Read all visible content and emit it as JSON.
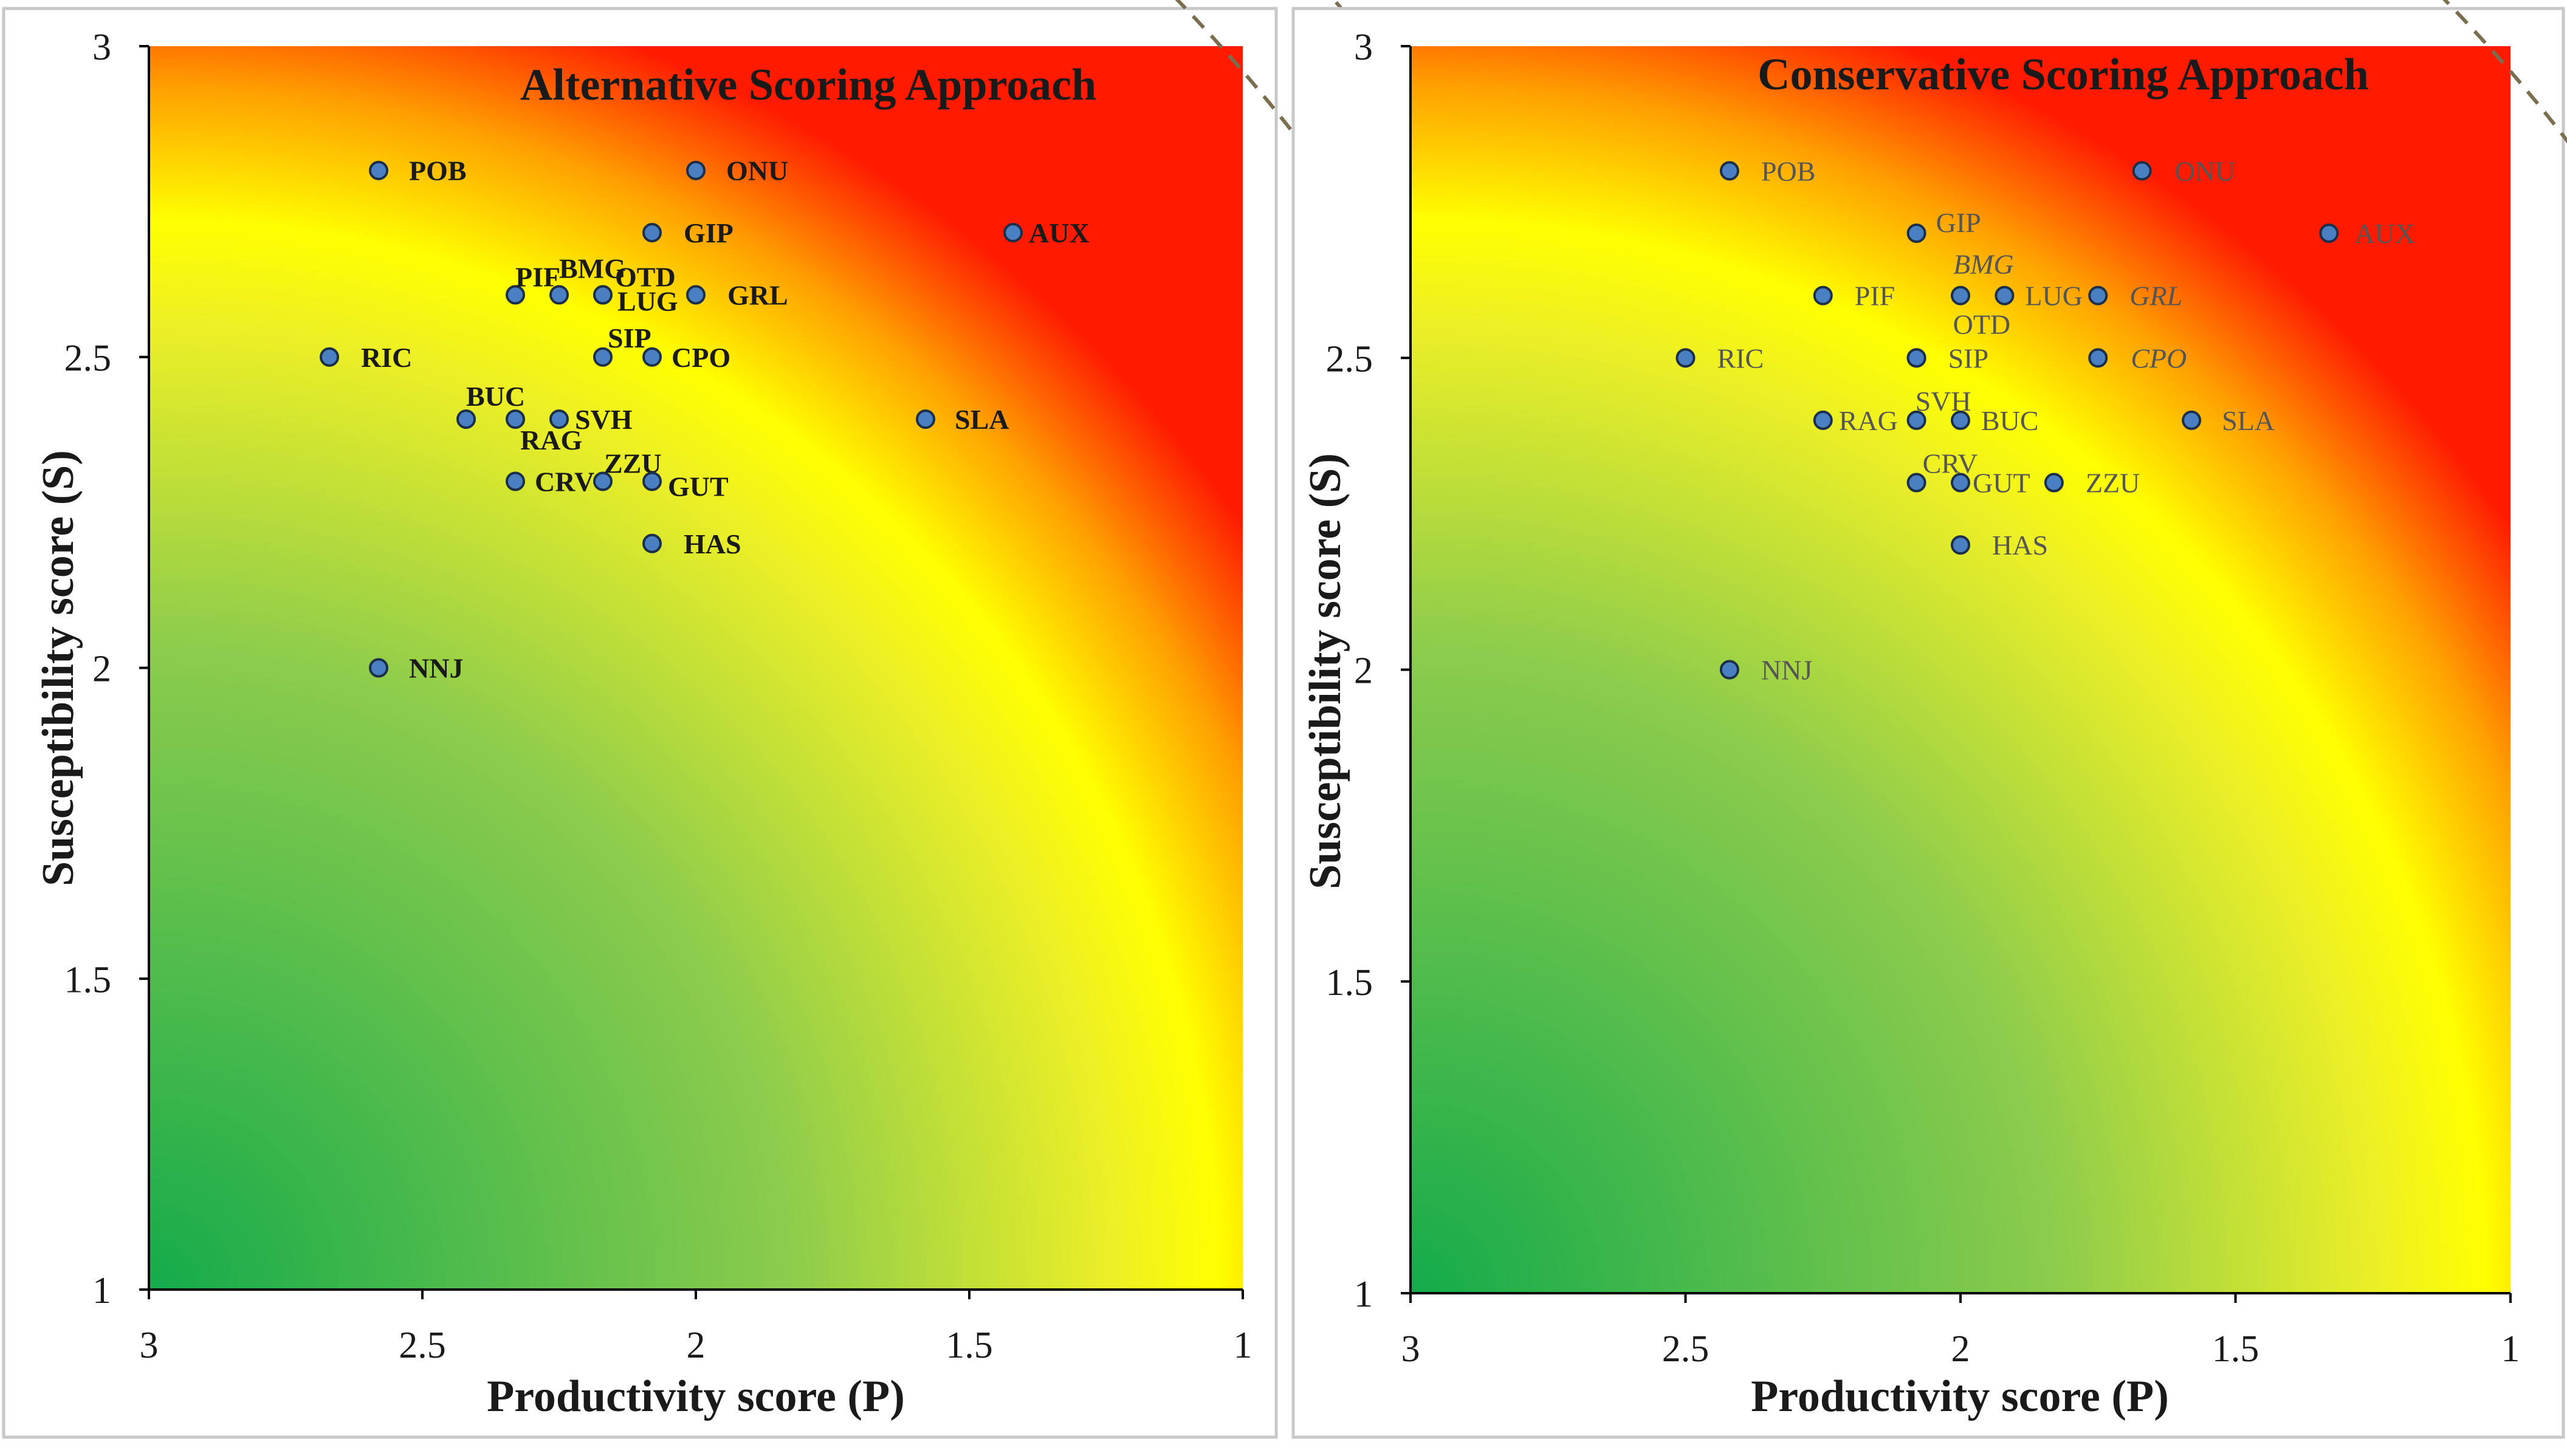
{
  "chart_data": [
    {
      "type": "scatter",
      "title": "Alternative Scoring Approach",
      "xlabel": "Productivity score (P)",
      "ylabel": "Susceptibility score (S)",
      "xlim": [
        3,
        1
      ],
      "ylim": [
        1,
        3
      ],
      "x_ticks": [
        "3",
        "2.5",
        "2",
        "1.5",
        "1"
      ],
      "y_ticks": [
        "1",
        "1.5",
        "2",
        "2.5",
        "3"
      ],
      "risk_thresholds": [
        2.8,
        3.0
      ],
      "colors": {
        "low": "#14ab4b",
        "mid": "#ffff00",
        "high": "#ff1a00"
      },
      "points": [
        {
          "label": "POB",
          "x": 2.58,
          "y": 2.8
        },
        {
          "label": "ONU",
          "x": 2.0,
          "y": 2.8
        },
        {
          "label": "AUX",
          "x": 1.42,
          "y": 2.7
        },
        {
          "label": "GIP",
          "x": 2.08,
          "y": 2.7
        },
        {
          "label": "PIF",
          "x": 2.33,
          "y": 2.6
        },
        {
          "label": "BMG",
          "x": 2.25,
          "y": 2.6
        },
        {
          "label": "OTD",
          "x": 2.17,
          "y": 2.6
        },
        {
          "label": "LUG",
          "x": 2.17,
          "y": 2.6
        },
        {
          "label": "GRL",
          "x": 2.0,
          "y": 2.6
        },
        {
          "label": "RIC",
          "x": 2.67,
          "y": 2.5
        },
        {
          "label": "SIP",
          "x": 2.17,
          "y": 2.5
        },
        {
          "label": "CPO",
          "x": 2.08,
          "y": 2.5
        },
        {
          "label": "BUC",
          "x": 2.42,
          "y": 2.4
        },
        {
          "label": "RAG",
          "x": 2.33,
          "y": 2.4
        },
        {
          "label": "SVH",
          "x": 2.25,
          "y": 2.4
        },
        {
          "label": "SLA",
          "x": 1.58,
          "y": 2.4
        },
        {
          "label": "CRV",
          "x": 2.33,
          "y": 2.3
        },
        {
          "label": "ZZU",
          "x": 2.17,
          "y": 2.3
        },
        {
          "label": "GUT",
          "x": 2.08,
          "y": 2.3
        },
        {
          "label": "HAS",
          "x": 2.08,
          "y": 2.2
        },
        {
          "label": "NNJ",
          "x": 2.58,
          "y": 2.0
        }
      ]
    },
    {
      "type": "scatter",
      "title": "Conservative Scoring Approach",
      "xlabel": "Productivity score (P)",
      "ylabel": "Susceptibility score (S)",
      "xlim": [
        3,
        1
      ],
      "ylim": [
        1,
        3
      ],
      "x_ticks": [
        "3",
        "2.5",
        "2",
        "1.5",
        "1"
      ],
      "y_ticks": [
        "1",
        "1.5",
        "2",
        "2.5",
        "3"
      ],
      "risk_thresholds": [
        2.8,
        3.0
      ],
      "colors": {
        "low": "#14ab4b",
        "mid": "#ffff00",
        "high": "#ff1a00"
      },
      "points": [
        {
          "label": "POB",
          "x": 2.42,
          "y": 2.8
        },
        {
          "label": "ONU",
          "x": 1.67,
          "y": 2.8
        },
        {
          "label": "AUX",
          "x": 1.33,
          "y": 2.7
        },
        {
          "label": "GIP",
          "x": 2.08,
          "y": 2.7
        },
        {
          "label": "BMG",
          "x": 2.0,
          "y": 2.6
        },
        {
          "label": "PIF",
          "x": 2.25,
          "y": 2.6
        },
        {
          "label": "LUG",
          "x": 1.92,
          "y": 2.6
        },
        {
          "label": "GRL",
          "x": 1.75,
          "y": 2.6
        },
        {
          "label": "OTD",
          "x": 2.08,
          "y": 2.5
        },
        {
          "label": "RIC",
          "x": 2.5,
          "y": 2.5
        },
        {
          "label": "SIP",
          "x": 2.08,
          "y": 2.5
        },
        {
          "label": "CPO",
          "x": 1.75,
          "y": 2.5
        },
        {
          "label": "SVH",
          "x": 2.08,
          "y": 2.4
        },
        {
          "label": "RAG",
          "x": 2.25,
          "y": 2.4
        },
        {
          "label": "BUC",
          "x": 2.0,
          "y": 2.4
        },
        {
          "label": "SLA",
          "x": 1.58,
          "y": 2.4
        },
        {
          "label": "CRV",
          "x": 2.08,
          "y": 2.3
        },
        {
          "label": "GUT",
          "x": 2.0,
          "y": 2.3
        },
        {
          "label": "ZZU",
          "x": 1.83,
          "y": 2.3
        },
        {
          "label": "HAS",
          "x": 2.0,
          "y": 2.2
        },
        {
          "label": "NNJ",
          "x": 2.42,
          "y": 2.0
        }
      ]
    }
  ]
}
